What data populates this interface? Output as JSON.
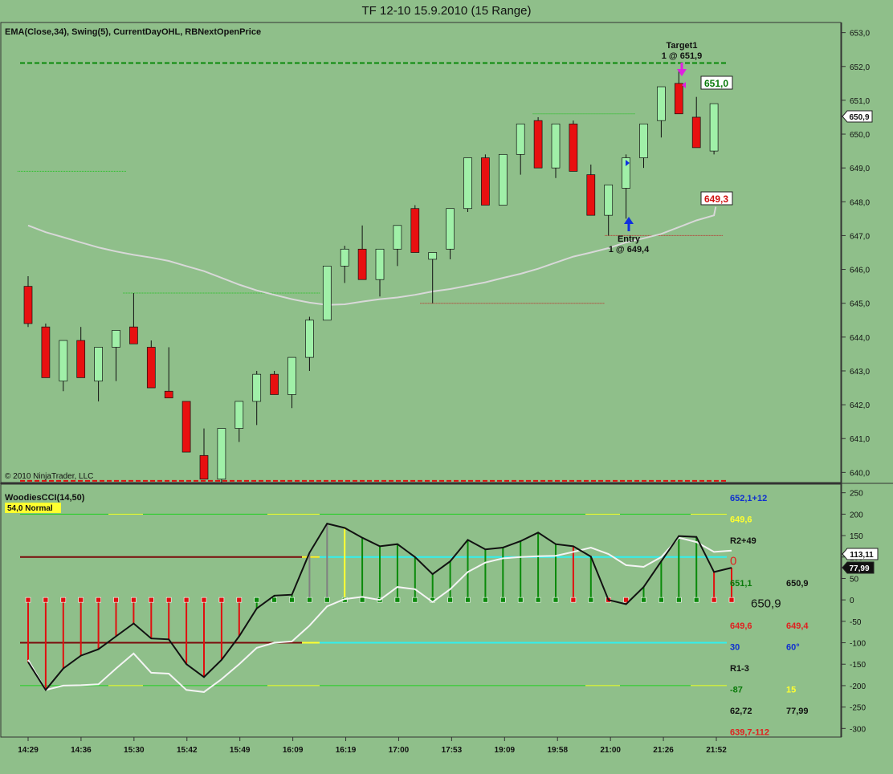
{
  "window": {
    "title": "TF 12-10  15.9.2010 (15 Range)"
  },
  "price_panel": {
    "indicator_label": "EMA(Close,34), Swing(5), CurrentDayOHL, RBNextOpenPrice",
    "copyright": "© 2010 NinjaTrader, LLC",
    "target": {
      "line1": "Target1",
      "line2": "1 @ 651,9"
    },
    "entry": {
      "line1": "Entry",
      "line2": "1 @ 649,4"
    },
    "box_upper": "651,0",
    "box_lower": "649,3",
    "last_price_tag": "650,9"
  },
  "cci_panel": {
    "label": "WoodiesCCI(14,50)",
    "badge": "54,0 Normal",
    "sidebar_texts": [
      {
        "text": "652,1+12",
        "color": "#1030d0",
        "bold": true,
        "col": 0,
        "row": 0
      },
      {
        "text": "649,6",
        "color": "#ffff30",
        "bold": true,
        "col": 0,
        "row": 1
      },
      {
        "text": "R2+49",
        "color": "#111111",
        "bold": true,
        "col": 0,
        "row": 2
      },
      {
        "text": "0",
        "color": "#e02020",
        "bold": false,
        "col": 0,
        "row": 3,
        "large": true
      },
      {
        "text": "651,1",
        "color": "#0a7a0a",
        "bold": true,
        "col": 0,
        "row": 4
      },
      {
        "text": "650,9",
        "color": "#111111",
        "bold": true,
        "col": 1,
        "row": 4
      },
      {
        "text": "650,9",
        "color": "#111111",
        "bold": false,
        "col": 2,
        "row": 5,
        "large": true
      },
      {
        "text": "649,6",
        "color": "#e02020",
        "bold": true,
        "col": 0,
        "row": 6
      },
      {
        "text": "649,4",
        "color": "#e02020",
        "bold": true,
        "col": 1,
        "row": 6
      },
      {
        "text": "30",
        "color": "#1030d0",
        "bold": true,
        "col": 0,
        "row": 7
      },
      {
        "text": "60°",
        "color": "#1030d0",
        "bold": true,
        "col": 1,
        "row": 7
      },
      {
        "text": "R1-3",
        "color": "#111111",
        "bold": true,
        "col": 0,
        "row": 8
      },
      {
        "text": "-87",
        "color": "#0a7a0a",
        "bold": true,
        "col": 0,
        "row": 9
      },
      {
        "text": "15",
        "color": "#ffff30",
        "bold": true,
        "col": 1,
        "row": 9
      },
      {
        "text": "62,72",
        "color": "#111111",
        "bold": true,
        "col": 0,
        "row": 10
      },
      {
        "text": "77,99",
        "color": "#111111",
        "bold": true,
        "col": 1,
        "row": 10
      },
      {
        "text": "639,7-112",
        "color": "#e02020",
        "bold": true,
        "col": 0,
        "row": 11
      }
    ],
    "tags": [
      "113,11",
      "77,99"
    ]
  },
  "chart_data": [
    {
      "type": "candlestick",
      "title": "TF 12-10  15.9.2010 (15 Range)",
      "ylim": [
        639.7,
        653.3
      ],
      "y_ticks": [
        "653,0",
        "652,0",
        "651,0",
        "650,0",
        "649,0",
        "648,0",
        "647,0",
        "646,0",
        "645,0",
        "644,0",
        "643,0",
        "642,0",
        "641,0",
        "640,0"
      ],
      "x_tick_labels": [
        "14:29",
        "14:36",
        "15:30",
        "15:42",
        "15:49",
        "16:09",
        "16:19",
        "17:00",
        "17:53",
        "19:09",
        "19:58",
        "21:00",
        "21:26",
        "21:52"
      ],
      "candles": [
        {
          "o": 645.5,
          "h": 645.8,
          "l": 644.3,
          "c": 644.4
        },
        {
          "o": 644.3,
          "h": 644.4,
          "l": 642.8,
          "c": 642.8
        },
        {
          "o": 642.7,
          "h": 643.9,
          "l": 642.4,
          "c": 643.9
        },
        {
          "o": 643.9,
          "h": 644.3,
          "l": 642.8,
          "c": 642.8
        },
        {
          "o": 642.7,
          "h": 643.7,
          "l": 642.1,
          "c": 643.7
        },
        {
          "o": 643.7,
          "h": 644.2,
          "l": 642.7,
          "c": 644.2
        },
        {
          "o": 644.3,
          "h": 645.3,
          "l": 643.8,
          "c": 643.8
        },
        {
          "o": 643.7,
          "h": 643.9,
          "l": 642.5,
          "c": 642.5
        },
        {
          "o": 642.4,
          "h": 643.7,
          "l": 642.2,
          "c": 642.2
        },
        {
          "o": 642.1,
          "h": 642.1,
          "l": 640.6,
          "c": 640.6
        },
        {
          "o": 640.5,
          "h": 641.3,
          "l": 639.8,
          "c": 639.8
        },
        {
          "o": 639.8,
          "h": 641.3,
          "l": 639.7,
          "c": 641.3
        },
        {
          "o": 641.3,
          "h": 642.1,
          "l": 640.9,
          "c": 642.1
        },
        {
          "o": 642.1,
          "h": 643.0,
          "l": 641.4,
          "c": 642.9
        },
        {
          "o": 642.9,
          "h": 643.0,
          "l": 642.3,
          "c": 642.3
        },
        {
          "o": 642.3,
          "h": 643.4,
          "l": 641.9,
          "c": 643.4
        },
        {
          "o": 643.4,
          "h": 644.6,
          "l": 643.0,
          "c": 644.5
        },
        {
          "o": 644.5,
          "h": 646.1,
          "l": 644.5,
          "c": 646.1
        },
        {
          "o": 646.1,
          "h": 646.7,
          "l": 645.6,
          "c": 646.6
        },
        {
          "o": 646.6,
          "h": 647.3,
          "l": 645.7,
          "c": 645.7
        },
        {
          "o": 645.7,
          "h": 646.6,
          "l": 645.2,
          "c": 646.6
        },
        {
          "o": 646.6,
          "h": 647.3,
          "l": 646.1,
          "c": 647.3
        },
        {
          "o": 647.8,
          "h": 647.9,
          "l": 646.5,
          "c": 646.5
        },
        {
          "o": 646.3,
          "h": 646.5,
          "l": 645.0,
          "c": 646.5
        },
        {
          "o": 646.6,
          "h": 647.8,
          "l": 646.3,
          "c": 647.8
        },
        {
          "o": 647.8,
          "h": 649.3,
          "l": 647.7,
          "c": 649.3
        },
        {
          "o": 649.3,
          "h": 649.4,
          "l": 647.9,
          "c": 647.9
        },
        {
          "o": 647.9,
          "h": 649.4,
          "l": 647.9,
          "c": 649.4
        },
        {
          "o": 649.4,
          "h": 650.3,
          "l": 648.8,
          "c": 650.3
        },
        {
          "o": 650.4,
          "h": 650.5,
          "l": 649.0,
          "c": 649.0
        },
        {
          "o": 649.0,
          "h": 650.3,
          "l": 648.7,
          "c": 650.3
        },
        {
          "o": 650.3,
          "h": 650.4,
          "l": 648.9,
          "c": 648.9
        },
        {
          "o": 648.8,
          "h": 649.1,
          "l": 647.6,
          "c": 647.6
        },
        {
          "o": 647.6,
          "h": 648.5,
          "l": 647.0,
          "c": 648.5
        },
        {
          "o": 648.4,
          "h": 649.4,
          "l": 647.5,
          "c": 649.3
        },
        {
          "o": 649.3,
          "h": 650.3,
          "l": 649.0,
          "c": 650.3
        },
        {
          "o": 650.4,
          "h": 651.4,
          "l": 649.9,
          "c": 651.4
        },
        {
          "o": 651.5,
          "h": 651.9,
          "l": 650.6,
          "c": 650.6
        },
        {
          "o": 650.5,
          "h": 651.1,
          "l": 649.6,
          "c": 649.6
        },
        {
          "o": 649.5,
          "h": 650.9,
          "l": 649.4,
          "c": 650.9
        }
      ],
      "ema": [
        647.3,
        647.1,
        646.95,
        646.8,
        646.65,
        646.53,
        646.43,
        646.35,
        646.25,
        646.1,
        645.95,
        645.75,
        645.55,
        645.38,
        645.25,
        645.12,
        645.02,
        644.95,
        644.97,
        645.05,
        645.12,
        645.17,
        645.25,
        645.35,
        645.42,
        645.52,
        645.62,
        645.75,
        645.87,
        646.02,
        646.2,
        646.38,
        646.5,
        646.63,
        646.8,
        646.92,
        647.05,
        647.25,
        647.45,
        647.6
      ],
      "ema_last_x": 39.1,
      "ema_last_y": 647.85,
      "day_high_line": 652.1,
      "day_low_line": 639.75,
      "swing_lines": [
        {
          "y": 648.9,
          "x0": -0.6,
          "x1": 5.6,
          "color": "#20c020"
        },
        {
          "y": 645.3,
          "x0": 5.4,
          "x1": 16.6,
          "color": "#20c020"
        },
        {
          "y": 650.6,
          "x0": 28.7,
          "x1": 34.5,
          "color": "#20c020"
        },
        {
          "y": 645.0,
          "x0": 22.3,
          "x1": 32.8,
          "color": "#c02020"
        },
        {
          "y": 647.0,
          "x0": 32.8,
          "x1": 39.5,
          "color": "#c02020"
        }
      ]
    },
    {
      "type": "line",
      "title": "WoodiesCCI(14,50)",
      "ylim": [
        -320,
        270
      ],
      "y_ticks": [
        250,
        200,
        150,
        100,
        50,
        0,
        -50,
        -100,
        -150,
        -200,
        -250,
        -300
      ],
      "levels": {
        "hundred": 100,
        "neg_hundred": -100,
        "two_hundred": 200,
        "neg_two_hundred": -200
      },
      "cci": [
        -145,
        -210,
        -160,
        -130,
        -115,
        -85,
        -55,
        -90,
        -92,
        -150,
        -180,
        -140,
        -85,
        -20,
        10,
        12,
        110,
        178,
        168,
        145,
        125,
        130,
        100,
        60,
        90,
        140,
        118,
        122,
        137,
        157,
        130,
        125,
        101,
        0,
        -10,
        30,
        90,
        149,
        147,
        65,
        75
      ],
      "turbo": [
        -140,
        -210,
        -200,
        -199,
        -197,
        -160,
        -125,
        -170,
        -172,
        -210,
        -215,
        -185,
        -150,
        -112,
        -100,
        -97,
        -60,
        -15,
        2,
        7,
        0,
        30,
        25,
        -5,
        25,
        65,
        87,
        97,
        100,
        102,
        103,
        112,
        122,
        107,
        81,
        77,
        100,
        145,
        135,
        112,
        115
      ],
      "hist_colors": [
        "r",
        "r",
        "r",
        "r",
        "r",
        "r",
        "r",
        "r",
        "r",
        "r",
        "r",
        "r",
        "r",
        "g",
        "g",
        "g",
        "gray",
        "gray",
        "y",
        "g",
        "g",
        "g",
        "g",
        "g",
        "g",
        "g",
        "g",
        "g",
        "g",
        "g",
        "g",
        "r",
        "g",
        "r",
        "r",
        "g",
        "g",
        "g",
        "g",
        "r",
        "r"
      ]
    }
  ]
}
